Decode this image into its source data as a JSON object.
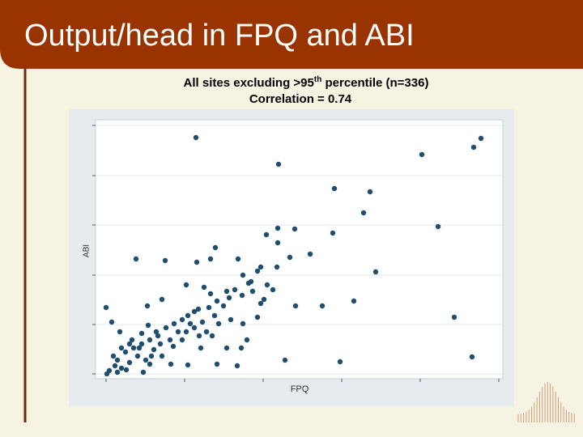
{
  "slide_title": "Output/head in FPQ and ABI",
  "chart_data": {
    "type": "scatter",
    "title": [
      "All sites excluding >95",
      "th",
      " percentile (n=336)"
    ],
    "subtitle": "Correlation = 0.74",
    "x_label": "FPQ",
    "y_label": "ABI",
    "color": "#1f4e6e",
    "grid": true,
    "xlim": [
      -13,
      490
    ],
    "ylim": [
      -6,
      314
    ],
    "xticks": [
      0,
      97,
      194,
      291,
      388,
      485
    ],
    "yticks": [
      0,
      61,
      122,
      184,
      245,
      307
    ],
    "x": [
      111,
      213,
      390,
      454,
      463,
      282,
      326,
      318,
      410,
      280,
      212,
      233,
      198,
      135,
      37,
      73,
      112,
      129,
      163,
      212,
      252,
      227,
      333,
      191,
      176,
      206,
      99,
      121,
      129,
      168,
      191,
      0,
      51,
      69,
      234,
      267,
      306,
      430,
      452,
      221,
      289,
      162,
      137,
      101,
      80,
      32,
      17,
      7,
      101,
      114,
      127,
      145,
      134,
      154,
      169,
      174,
      167,
      149,
      131,
      117,
      83,
      67,
      56,
      46,
      19,
      9,
      4,
      14,
      24,
      34,
      44,
      54,
      64,
      74,
      84,
      94,
      104,
      109,
      119,
      124,
      139,
      89,
      79,
      59,
      39,
      29,
      11,
      1,
      25,
      49,
      69,
      94,
      115,
      137,
      149,
      159,
      181,
      187,
      195,
      199,
      211,
      187,
      169,
      152,
      179,
      109,
      99,
      62,
      44,
      52,
      19,
      29,
      41,
      54,
      14
    ],
    "values": [
      292,
      259,
      271,
      280,
      291,
      229,
      225,
      199,
      182,
      174,
      180,
      179,
      172,
      156,
      142,
      140,
      138,
      142,
      142,
      162,
      148,
      144,
      126,
      132,
      112,
      104,
      110,
      107,
      99,
      97,
      87,
      82,
      84,
      92,
      84,
      84,
      90,
      70,
      21,
      17,
      15,
      10,
      12,
      11,
      12,
      42,
      52,
      64,
      72,
      80,
      82,
      84,
      72,
      67,
      62,
      42,
      32,
      32,
      47,
      32,
      34,
      37,
      22,
      2,
      7,
      22,
      4,
      17,
      27,
      32,
      37,
      42,
      47,
      57,
      62,
      67,
      62,
      57,
      64,
      52,
      62,
      52,
      42,
      30,
      22,
      14,
      10,
      0,
      5,
      17,
      22,
      42,
      47,
      90,
      102,
      104,
      102,
      70,
      92,
      110,
      132,
      127,
      122,
      94,
      114,
      77,
      52,
      52,
      50,
      60,
      32,
      37,
      32,
      12,
      2
    ]
  }
}
